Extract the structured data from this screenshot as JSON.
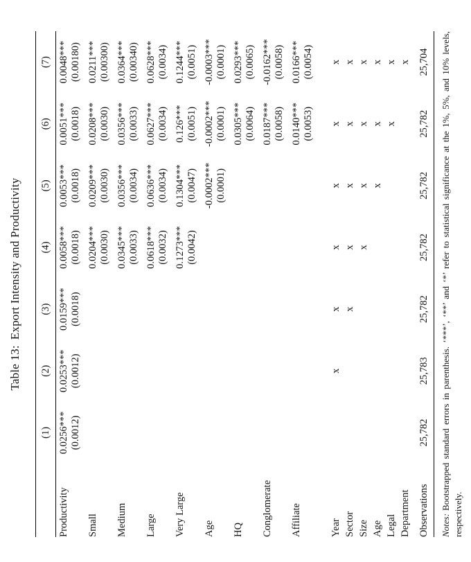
{
  "colors": {
    "background": "#ffffff",
    "text": "#151515",
    "rule": "#000000"
  },
  "caption": {
    "label": "Table 13:",
    "title": "Export Intensity and Productivity"
  },
  "table": {
    "column_headers": [
      "(1)",
      "(2)",
      "(3)",
      "(4)",
      "(5)",
      "(6)",
      "(7)"
    ],
    "coefficient_rows": [
      {
        "label": "Productivity",
        "coefs": [
          "0.0256***",
          "0.0253***",
          "0.0159***",
          "0.0058***",
          "0.0053***",
          "0.0051***",
          "0.0048***"
        ],
        "ses": [
          "(0.0012)",
          "(0.0012)",
          "(0.0018)",
          "(0.0018)",
          "(0.0018)",
          "(0.0018)",
          "(0.00180)"
        ]
      },
      {
        "label": "Small",
        "coefs": [
          "",
          "",
          "",
          "0.0204***",
          "0.0209***",
          "0.0208***",
          "0.0211***"
        ],
        "ses": [
          "",
          "",
          "",
          "(0.0030)",
          "(0.0030)",
          "(0.0030)",
          "(0.00300)"
        ]
      },
      {
        "label": "Medium",
        "coefs": [
          "",
          "",
          "",
          "0.0345***",
          "0.0356***",
          "0.0356***",
          "0.0364***"
        ],
        "ses": [
          "",
          "",
          "",
          "(0.0033)",
          "(0.0034)",
          "(0.0033)",
          "(0.00340)"
        ]
      },
      {
        "label": "Large",
        "coefs": [
          "",
          "",
          "",
          "0.0618***",
          "0.0636***",
          "0.0627***",
          "0.0628***"
        ],
        "ses": [
          "",
          "",
          "",
          "(0.0032)",
          "(0.0034)",
          "(0.0034)",
          "(0.0034)"
        ]
      },
      {
        "label": "Very Large",
        "coefs": [
          "",
          "",
          "",
          "0.1273***",
          "0.1304***",
          "0.126***",
          "0.1244***"
        ],
        "ses": [
          "",
          "",
          "",
          "(0.0042)",
          "(0.0047)",
          "(0.0051)",
          "(0.0051)"
        ]
      },
      {
        "label": "Age",
        "coefs": [
          "",
          "",
          "",
          "",
          "-0.0002***",
          "-0.0002***",
          "-0.0003***"
        ],
        "ses": [
          "",
          "",
          "",
          "",
          "(0.0001)",
          "(0.0001)",
          "(0.0001)"
        ]
      },
      {
        "label": "HQ",
        "coefs": [
          "",
          "",
          "",
          "",
          "",
          "0.0305***",
          "0.0293***"
        ],
        "ses": [
          "",
          "",
          "",
          "",
          "",
          "(0.0064)",
          "(0.0065)"
        ]
      },
      {
        "label": "Conglomerate",
        "coefs": [
          "",
          "",
          "",
          "",
          "",
          "0.0187***",
          "-0.0162***"
        ],
        "ses": [
          "",
          "",
          "",
          "",
          "",
          "(0.0058)",
          "(0.0058)"
        ]
      },
      {
        "label": "Affiliate",
        "coefs": [
          "",
          "",
          "",
          "",
          "",
          "0.0140***",
          "0.0166***"
        ],
        "ses": [
          "",
          "",
          "",
          "",
          "",
          "(0.0053)",
          "(0.0054)"
        ]
      }
    ],
    "fixed_effect_rows": [
      {
        "label": "Year",
        "marks": [
          "",
          "x",
          "x",
          "x",
          "x",
          "x",
          "x"
        ]
      },
      {
        "label": "Sector",
        "marks": [
          "",
          "",
          "x",
          "x",
          "x",
          "x",
          "x"
        ]
      },
      {
        "label": "Size",
        "marks": [
          "",
          "",
          "",
          "x",
          "x",
          "x",
          "x"
        ]
      },
      {
        "label": "Age",
        "marks": [
          "",
          "",
          "",
          "",
          "x",
          "x",
          "x"
        ]
      },
      {
        "label": "Legal",
        "marks": [
          "",
          "",
          "",
          "",
          "",
          "x",
          "x"
        ]
      },
      {
        "label": "Department",
        "marks": [
          "",
          "",
          "",
          "",
          "",
          "",
          "x"
        ]
      }
    ],
    "observations": {
      "label": "Observations",
      "values": [
        "25,782",
        "25,783",
        "25,782",
        "25,782",
        "25,782",
        "25,782",
        "25,704"
      ]
    }
  },
  "notes": {
    "label": "Notes:",
    "text": "Bootstrapped standard errors in parenthesis. ‘***’, ‘**’ and ‘*’ refer to statistical significance at the 1%, 5%, and 10% levels, respectively."
  }
}
